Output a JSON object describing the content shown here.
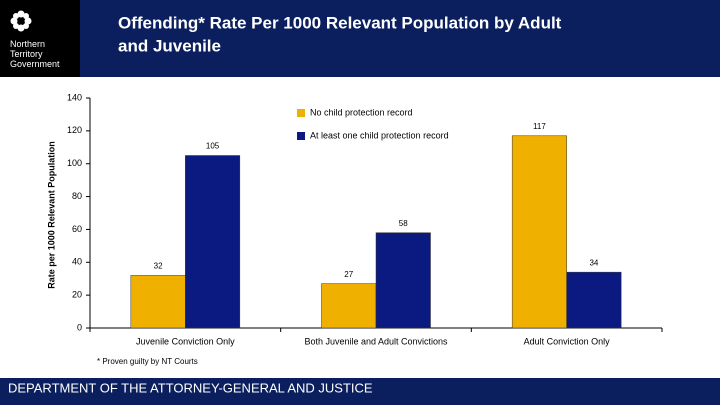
{
  "header": {
    "title_lines": [
      "Offending* Rate Per 1000 Relevant Population by Adult",
      "and Juvenile"
    ],
    "logo_lines": [
      "Northern",
      "Territory",
      "Government"
    ]
  },
  "chart_data": {
    "type": "bar",
    "y_label": "Rate per 1000 Relevant Population",
    "categories": [
      "Juvenile Conviction Only",
      "Both Juvenile and Adult Convictions",
      "Adult Conviction Only"
    ],
    "series": [
      {
        "name": "No child protection record",
        "color": "#f0b000",
        "values": [
          32,
          27,
          117
        ]
      },
      {
        "name": "At least one child protection record",
        "color": "#0a1a80",
        "values": [
          105,
          58,
          34
        ]
      }
    ],
    "ylim": [
      0,
      140
    ],
    "yticks": [
      0,
      20,
      40,
      60,
      80,
      100,
      120,
      140
    ],
    "note": "* Proven guilty by NT Courts"
  },
  "footer": {
    "text": "DEPARTMENT OF THE ATTORNEY-GENERAL AND JUSTICE"
  }
}
